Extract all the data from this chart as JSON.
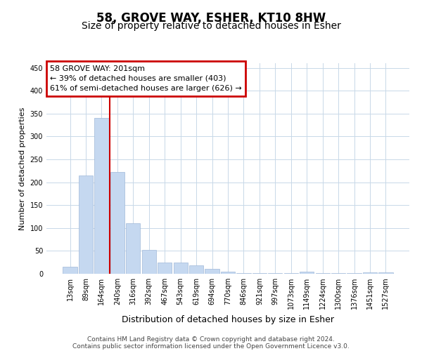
{
  "title": "58, GROVE WAY, ESHER, KT10 8HW",
  "subtitle": "Size of property relative to detached houses in Esher",
  "xlabel": "Distribution of detached houses by size in Esher",
  "ylabel": "Number of detached properties",
  "categories": [
    "13sqm",
    "89sqm",
    "164sqm",
    "240sqm",
    "316sqm",
    "392sqm",
    "467sqm",
    "543sqm",
    "619sqm",
    "694sqm",
    "770sqm",
    "846sqm",
    "921sqm",
    "997sqm",
    "1073sqm",
    "1149sqm",
    "1224sqm",
    "1300sqm",
    "1376sqm",
    "1451sqm",
    "1527sqm"
  ],
  "values": [
    15,
    215,
    340,
    222,
    111,
    52,
    25,
    24,
    19,
    10,
    5,
    2,
    1,
    1,
    1,
    5,
    1,
    1,
    1,
    3,
    3
  ],
  "bar_color": "#c5d8f0",
  "bar_edge_color": "#a0b8d8",
  "vline_x": 2.5,
  "vline_color": "#cc0000",
  "annotation_line1": "58 GROVE WAY: 201sqm",
  "annotation_line2": "← 39% of detached houses are smaller (403)",
  "annotation_line3": "61% of semi-detached houses are larger (626) →",
  "annotation_box_color": "#cc0000",
  "ylim": [
    0,
    460
  ],
  "yticks": [
    0,
    50,
    100,
    150,
    200,
    250,
    300,
    350,
    400,
    450
  ],
  "bg_color": "#ffffff",
  "grid_color": "#c8d8e8",
  "footnote_line1": "Contains HM Land Registry data © Crown copyright and database right 2024.",
  "footnote_line2": "Contains public sector information licensed under the Open Government Licence v3.0.",
  "title_fontsize": 12,
  "subtitle_fontsize": 10,
  "xlabel_fontsize": 9,
  "ylabel_fontsize": 8,
  "tick_fontsize": 7,
  "annotation_fontsize": 8,
  "footnote_fontsize": 6.5
}
